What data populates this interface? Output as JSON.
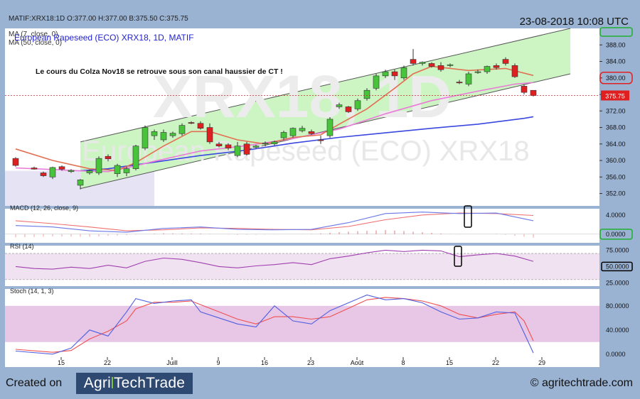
{
  "header": {
    "ohlc_line": "MATIF:XRX18:1D O:377.00 H:377.00 B:375.50 C:375.75",
    "timestamp": "23-08-2018 10:08 UTC"
  },
  "footer": {
    "created_on": "Created on",
    "logo_left": "Agri",
    "logo_right": "TechTrade",
    "copyright": "© agritechtrade.com"
  },
  "chart_data": [
    {
      "type": "candlestick",
      "panel": "price",
      "title": "European Rapeseed (ECO) XRX18, 1D, MATIF",
      "watermark_symbol": "XRX18, 1D",
      "watermark_name": "European Rapeseed (ECO) XRX18",
      "legend": [
        "MA (7, close, 0)",
        "MA (50, close, 0)"
      ],
      "annotation": "Le cours du Colza Nov18 se retrouve sous son canal haussier de CT !",
      "x_tick_labels": [
        "15",
        "22",
        "Juill",
        "9",
        "16",
        "23",
        "Août",
        "8",
        "15",
        "22",
        "29"
      ],
      "y_tick_labels": [
        "388.00",
        "384.00",
        "380.00",
        "376.00",
        "372.00",
        "368.00",
        "364.00",
        "360.00",
        "356.00",
        "352.00"
      ],
      "ylim": [
        349,
        392
      ],
      "last_price_label": "375.75",
      "candles": [
        {
          "i": 0,
          "o": 360.5,
          "h": 360.8,
          "l": 358.5,
          "c": 358.8
        },
        {
          "i": 2,
          "o": 358.2,
          "h": 358.5,
          "l": 357.8,
          "c": 357.9
        },
        {
          "i": 3,
          "o": 357.0,
          "h": 357.3,
          "l": 356.0,
          "c": 356.3
        },
        {
          "i": 4,
          "o": 356.0,
          "h": 358.5,
          "l": 355.5,
          "c": 358.3
        },
        {
          "i": 5,
          "o": 358.5,
          "h": 358.8,
          "l": 357.5,
          "c": 357.9
        },
        {
          "i": 6,
          "o": 357.3,
          "h": 357.9,
          "l": 357.0,
          "c": 357.6
        },
        {
          "i": 7,
          "o": 354.0,
          "h": 355.5,
          "l": 353.0,
          "c": 355.3
        },
        {
          "i": 8,
          "o": 357.0,
          "h": 357.8,
          "l": 356.6,
          "c": 357.5
        },
        {
          "i": 9,
          "o": 357.0,
          "h": 361.0,
          "l": 356.5,
          "c": 360.5
        },
        {
          "i": 10,
          "o": 361.0,
          "h": 361.5,
          "l": 359.8,
          "c": 360.4
        },
        {
          "i": 11,
          "o": 356.8,
          "h": 359.2,
          "l": 356.0,
          "c": 358.8
        },
        {
          "i": 12,
          "o": 357.0,
          "h": 358.5,
          "l": 356.2,
          "c": 358.0
        },
        {
          "i": 13,
          "o": 358.0,
          "h": 363.8,
          "l": 357.6,
          "c": 363.5
        },
        {
          "i": 14,
          "o": 363.0,
          "h": 368.5,
          "l": 362.5,
          "c": 368.0
        },
        {
          "i": 15,
          "o": 366.0,
          "h": 367.5,
          "l": 365.0,
          "c": 367.0
        },
        {
          "i": 16,
          "o": 365.0,
          "h": 367.5,
          "l": 364.5,
          "c": 366.8
        },
        {
          "i": 17,
          "o": 366.0,
          "h": 367.0,
          "l": 365.5,
          "c": 366.6
        },
        {
          "i": 18,
          "o": 366.5,
          "h": 369.0,
          "l": 366.0,
          "c": 368.5
        },
        {
          "i": 19,
          "o": 369.2,
          "h": 369.5,
          "l": 368.8,
          "c": 369.1
        },
        {
          "i": 20,
          "o": 369.0,
          "h": 369.5,
          "l": 367.5,
          "c": 367.8
        },
        {
          "i": 21,
          "o": 368.0,
          "h": 369.0,
          "l": 364.0,
          "c": 364.5
        },
        {
          "i": 22,
          "o": 364.0,
          "h": 364.5,
          "l": 363.2,
          "c": 363.5
        },
        {
          "i": 23,
          "o": 363.8,
          "h": 364.2,
          "l": 362.5,
          "c": 363.0
        },
        {
          "i": 24,
          "o": 361.2,
          "h": 364.5,
          "l": 360.8,
          "c": 363.5
        },
        {
          "i": 25,
          "o": 364.0,
          "h": 364.5,
          "l": 361.2,
          "c": 361.5
        },
        {
          "i": 26,
          "o": 363.2,
          "h": 363.8,
          "l": 362.8,
          "c": 363.5
        },
        {
          "i": 27,
          "o": 364.0,
          "h": 364.6,
          "l": 363.4,
          "c": 364.2
        },
        {
          "i": 28,
          "o": 364.0,
          "h": 364.8,
          "l": 363.6,
          "c": 364.5
        },
        {
          "i": 29,
          "o": 365.5,
          "h": 367.2,
          "l": 365.0,
          "c": 366.8
        },
        {
          "i": 30,
          "o": 366.0,
          "h": 368.0,
          "l": 365.5,
          "c": 367.8
        },
        {
          "i": 31,
          "o": 367.2,
          "h": 368.4,
          "l": 366.8,
          "c": 367.8
        },
        {
          "i": 32,
          "o": 367.0,
          "h": 367.5,
          "l": 366.2,
          "c": 366.5
        },
        {
          "i": 33,
          "o": 365.0,
          "h": 366.0,
          "l": 364.0,
          "c": 364.8
        },
        {
          "i": 34,
          "o": 366.0,
          "h": 370.5,
          "l": 365.5,
          "c": 370.0
        },
        {
          "i": 35,
          "o": 373.0,
          "h": 374.0,
          "l": 372.5,
          "c": 373.5
        },
        {
          "i": 36,
          "o": 373.0,
          "h": 373.2,
          "l": 371.5,
          "c": 371.8
        },
        {
          "i": 37,
          "o": 372.5,
          "h": 375.0,
          "l": 372.0,
          "c": 374.5
        },
        {
          "i": 38,
          "o": 375.0,
          "h": 377.5,
          "l": 374.5,
          "c": 377.0
        },
        {
          "i": 39,
          "o": 377.5,
          "h": 381.0,
          "l": 377.0,
          "c": 380.5
        },
        {
          "i": 40,
          "o": 380.5,
          "h": 382.0,
          "l": 380.0,
          "c": 381.5
        },
        {
          "i": 41,
          "o": 381.5,
          "h": 382.0,
          "l": 379.5,
          "c": 380.5
        },
        {
          "i": 42,
          "o": 380.0,
          "h": 383.0,
          "l": 379.5,
          "c": 382.5
        },
        {
          "i": 43,
          "o": 384.5,
          "h": 387.0,
          "l": 383.0,
          "c": 383.5
        },
        {
          "i": 44,
          "o": 383.5,
          "h": 384.0,
          "l": 383.0,
          "c": 383.8
        },
        {
          "i": 45,
          "o": 383.5,
          "h": 383.8,
          "l": 382.5,
          "c": 382.8
        },
        {
          "i": 46,
          "o": 383.0,
          "h": 383.8,
          "l": 381.5,
          "c": 382.0
        },
        {
          "i": 47,
          "o": 383.0,
          "h": 383.5,
          "l": 382.6,
          "c": 383.2
        },
        {
          "i": 48,
          "o": 379.0,
          "h": 379.5,
          "l": 378.5,
          "c": 378.8
        },
        {
          "i": 49,
          "o": 378.5,
          "h": 381.5,
          "l": 378.0,
          "c": 381.0
        },
        {
          "i": 50,
          "o": 381.5,
          "h": 382.0,
          "l": 381.0,
          "c": 381.5
        },
        {
          "i": 51,
          "o": 381.5,
          "h": 383.0,
          "l": 381.0,
          "c": 382.8
        },
        {
          "i": 52,
          "o": 383.0,
          "h": 383.5,
          "l": 382.0,
          "c": 382.5
        },
        {
          "i": 53,
          "o": 384.5,
          "h": 385.0,
          "l": 383.0,
          "c": 383.5
        },
        {
          "i": 54,
          "o": 383.0,
          "h": 383.5,
          "l": 380.0,
          "c": 380.3
        },
        {
          "i": 55,
          "o": 378.0,
          "h": 378.5,
          "l": 376.0,
          "c": 376.5
        },
        {
          "i": 56,
          "o": 377.0,
          "h": 377.0,
          "l": 375.5,
          "c": 375.75
        }
      ],
      "ma7": [
        [
          0,
          362.8
        ],
        [
          4,
          360.0
        ],
        [
          8,
          358.0
        ],
        [
          11,
          357.6
        ],
        [
          13,
          359.5
        ],
        [
          16,
          363.5
        ],
        [
          19,
          367.0
        ],
        [
          21,
          367.0
        ],
        [
          24,
          365.0
        ],
        [
          27,
          364.0
        ],
        [
          30,
          365.6
        ],
        [
          33,
          366.2
        ],
        [
          35,
          368.8
        ],
        [
          38,
          372.5
        ],
        [
          41,
          377.5
        ],
        [
          43,
          381.0
        ],
        [
          45,
          382.8
        ],
        [
          49,
          381.8
        ],
        [
          53,
          382.3
        ],
        [
          56,
          380.6
        ]
      ],
      "ma50": [
        [
          0,
          358.2
        ],
        [
          4,
          357.8
        ],
        [
          8,
          357.4
        ],
        [
          10,
          357.3
        ],
        [
          12,
          358.2
        ],
        [
          15,
          359.8
        ],
        [
          20,
          362.3
        ],
        [
          25,
          363.6
        ],
        [
          30,
          365.3
        ],
        [
          35,
          367.6
        ],
        [
          40,
          371.3
        ],
        [
          45,
          374.5
        ],
        [
          50,
          376.8
        ],
        [
          54,
          378.5
        ],
        [
          56,
          378.9
        ]
      ],
      "ma100": [
        [
          7,
          357.5
        ],
        [
          10,
          358.0
        ],
        [
          15,
          359.6
        ],
        [
          20,
          361.2
        ],
        [
          25,
          362.5
        ],
        [
          30,
          364.2
        ],
        [
          35,
          365.6
        ],
        [
          40,
          366.7
        ],
        [
          45,
          367.8
        ],
        [
          50,
          368.8
        ],
        [
          55,
          370.2
        ],
        [
          56,
          370.6
        ]
      ],
      "channel_upper": [
        [
          7,
          364.5
        ],
        [
          60,
          392.0
        ]
      ],
      "channel_lower": [
        [
          7,
          353.2
        ],
        [
          60,
          381.0
        ]
      ]
    },
    {
      "type": "line",
      "panel": "indicator",
      "title": "MACD (12, 26, close, 9)",
      "y_tick_labels": [
        "4.0000",
        "0.0000"
      ],
      "ylim": [
        -1.8,
        5.3
      ],
      "series": [
        {
          "role": "macd",
          "values": [
            [
              0,
              1.8
            ],
            [
              4,
              1.5
            ],
            [
              8,
              0.7
            ],
            [
              12,
              0.4
            ],
            [
              16,
              1.2
            ],
            [
              20,
              1.5
            ],
            [
              24,
              1.0
            ],
            [
              28,
              0.9
            ],
            [
              32,
              1.0
            ],
            [
              36,
              2.4
            ],
            [
              40,
              4.3
            ],
            [
              44,
              4.6
            ],
            [
              48,
              4.3
            ],
            [
              52,
              4.4
            ],
            [
              56,
              2.8
            ]
          ]
        },
        {
          "role": "signal",
          "values": [
            [
              0,
              2.8
            ],
            [
              4,
              2.2
            ],
            [
              8,
              1.5
            ],
            [
              12,
              0.7
            ],
            [
              16,
              0.9
            ],
            [
              20,
              1.3
            ],
            [
              24,
              1.2
            ],
            [
              28,
              1.0
            ],
            [
              32,
              0.9
            ],
            [
              36,
              1.6
            ],
            [
              40,
              3.0
            ],
            [
              44,
              4.0
            ],
            [
              48,
              4.4
            ],
            [
              52,
              4.3
            ],
            [
              56,
              3.9
            ]
          ]
        }
      ]
    },
    {
      "type": "line",
      "panel": "indicator",
      "title": "RSI (14)",
      "y_tick_labels": [
        "75.0000",
        "50.0000",
        "25.0000"
      ],
      "ylim": [
        20,
        82
      ],
      "band": [
        30,
        70
      ],
      "values": [
        [
          0,
          50
        ],
        [
          2,
          47
        ],
        [
          4,
          46
        ],
        [
          6,
          49
        ],
        [
          8,
          47
        ],
        [
          10,
          52
        ],
        [
          12,
          48
        ],
        [
          14,
          58
        ],
        [
          16,
          63
        ],
        [
          18,
          61
        ],
        [
          20,
          56
        ],
        [
          22,
          50
        ],
        [
          24,
          48
        ],
        [
          26,
          51
        ],
        [
          28,
          53
        ],
        [
          30,
          56
        ],
        [
          32,
          53
        ],
        [
          34,
          62
        ],
        [
          36,
          66
        ],
        [
          38,
          71
        ],
        [
          40,
          75
        ],
        [
          42,
          73
        ],
        [
          44,
          75
        ],
        [
          46,
          74
        ],
        [
          48,
          65
        ],
        [
          50,
          68
        ],
        [
          52,
          70
        ],
        [
          54,
          66
        ],
        [
          56,
          58
        ]
      ]
    },
    {
      "type": "line",
      "panel": "indicator",
      "title": "Stoch (14, 1, 3)",
      "y_tick_labels": [
        "80.0000",
        "40.0000",
        "0.0000"
      ],
      "ylim": [
        -5,
        108
      ],
      "band": [
        20,
        80
      ],
      "series": [
        {
          "role": "k",
          "values": [
            [
              0,
              5
            ],
            [
              4,
              0
            ],
            [
              6,
              10
            ],
            [
              8,
              40
            ],
            [
              10,
              30
            ],
            [
              12,
              70
            ],
            [
              13,
              92
            ],
            [
              15,
              84
            ],
            [
              17,
              88
            ],
            [
              19,
              90
            ],
            [
              20,
              70
            ],
            [
              22,
              60
            ],
            [
              24,
              50
            ],
            [
              26,
              45
            ],
            [
              28,
              80
            ],
            [
              30,
              55
            ],
            [
              32,
              50
            ],
            [
              34,
              72
            ],
            [
              36,
              85
            ],
            [
              38,
              98
            ],
            [
              40,
              90
            ],
            [
              42,
              92
            ],
            [
              44,
              85
            ],
            [
              46,
              70
            ],
            [
              48,
              58
            ],
            [
              50,
              60
            ],
            [
              52,
              70
            ],
            [
              54,
              68
            ],
            [
              55,
              35
            ],
            [
              56,
              2
            ]
          ]
        },
        {
          "role": "d",
          "values": [
            [
              0,
              8
            ],
            [
              4,
              3
            ],
            [
              6,
              6
            ],
            [
              8,
              25
            ],
            [
              10,
              38
            ],
            [
              12,
              55
            ],
            [
              13,
              75
            ],
            [
              15,
              86
            ],
            [
              17,
              86
            ],
            [
              19,
              88
            ],
            [
              20,
              82
            ],
            [
              22,
              70
            ],
            [
              24,
              58
            ],
            [
              26,
              50
            ],
            [
              28,
              62
            ],
            [
              30,
              62
            ],
            [
              32,
              58
            ],
            [
              34,
              62
            ],
            [
              36,
              76
            ],
            [
              38,
              90
            ],
            [
              40,
              94
            ],
            [
              42,
              92
            ],
            [
              44,
              88
            ],
            [
              46,
              80
            ],
            [
              48,
              66
            ],
            [
              50,
              60
            ],
            [
              52,
              66
            ],
            [
              54,
              70
            ],
            [
              55,
              55
            ],
            [
              56,
              22
            ]
          ]
        }
      ]
    }
  ],
  "colors": {
    "background": "#9ab3d3",
    "channel_fill": "#cdf5c4",
    "up_candle": "#48c43a",
    "down_candle": "#e02020",
    "ma7": "#e36f52",
    "ma50": "#ea7bd8",
    "ma100": "#3a48e0",
    "highlight_red": "#e02020",
    "highlight_green": "#20b030"
  }
}
